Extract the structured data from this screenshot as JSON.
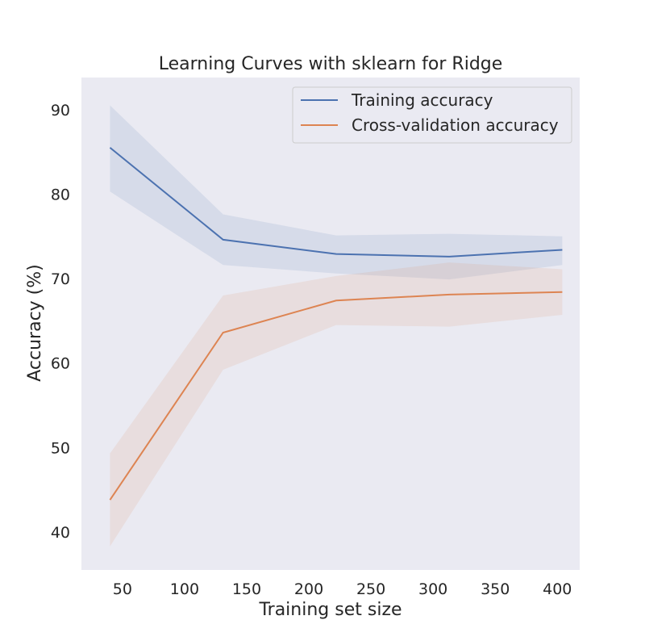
{
  "chart_data": {
    "type": "line",
    "title": "Learning Curves with sklearn for Ridge",
    "xlabel": "Training set size",
    "ylabel": "Accuracy (%)",
    "xlim": [
      17,
      418
    ],
    "ylim": [
      35.5,
      93.8
    ],
    "xticks": [
      50,
      100,
      150,
      200,
      250,
      300,
      350,
      400
    ],
    "yticks": [
      40,
      50,
      60,
      70,
      80,
      90
    ],
    "x": [
      40,
      131,
      222,
      313,
      404
    ],
    "grid": false,
    "legend_position": "top-right",
    "background_color": "#eaeaf2",
    "series": [
      {
        "name": "Training accuracy",
        "color": "#4c72b0",
        "values": [
          85.5,
          74.6,
          72.9,
          72.6,
          73.4
        ],
        "lower": [
          80.3,
          71.6,
          70.6,
          69.9,
          71.6
        ],
        "upper": [
          90.5,
          77.6,
          75.1,
          75.3,
          75.0
        ]
      },
      {
        "name": "Cross-validation accuracy",
        "color": "#dd8452",
        "values": [
          43.8,
          63.6,
          67.4,
          68.1,
          68.4
        ],
        "lower": [
          38.3,
          59.2,
          64.5,
          64.3,
          65.7
        ],
        "upper": [
          49.3,
          68.0,
          70.3,
          71.9,
          71.1
        ]
      }
    ]
  }
}
